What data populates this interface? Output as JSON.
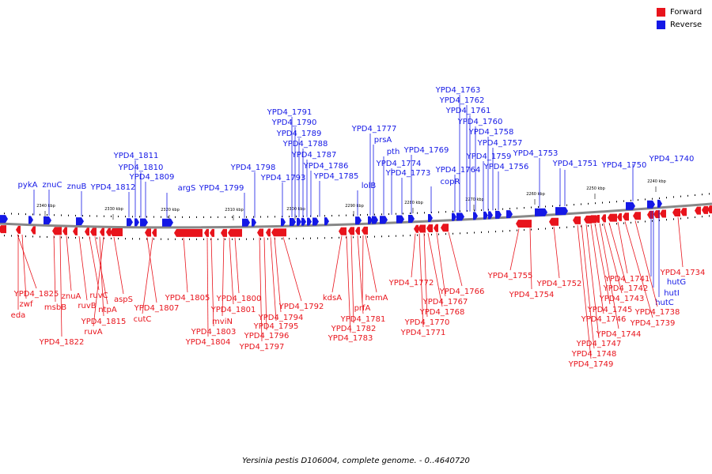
{
  "caption": "Yersinia pestis D106004, complete genome. - 0..4640720",
  "colors": {
    "forward": "#e8141c",
    "reverse": "#1418e6",
    "backbone": "#888888"
  },
  "legend": {
    "forward": "Forward",
    "reverse": "Reverse"
  },
  "scale_labels": [
    "2340 kbp",
    "2330 kbp",
    "2320 kbp",
    "2310 kbp",
    "2300 kbp",
    "2290 kbp",
    "2280 kbp",
    "2270 kbp",
    "2260 kbp",
    "2250 kbp",
    "2240 kbp"
  ],
  "reverse_genes": [
    "pykA",
    "znuC",
    "znuB",
    "YPD4_1812",
    "YPD4_1811",
    "YPD4_1810",
    "YPD4_1809",
    "argS",
    "YPD4_1799",
    "YPD4_1798",
    "YPD4_1793",
    "YPD4_1791",
    "YPD4_1790",
    "YPD4_1789",
    "YPD4_1788",
    "YPD4_1787",
    "YPD4_1786",
    "YPD4_1785",
    "lolB",
    "YPD4_1777",
    "prsA",
    "pth",
    "YPD4_1774",
    "YPD4_1773",
    "YPD4_1769",
    "copR",
    "YPD4_1764",
    "YPD4_1763",
    "YPD4_1762",
    "YPD4_1761",
    "YPD4_1760",
    "YPD4_1759",
    "YPD4_1758",
    "YPD4_1757",
    "YPD4_1756",
    "YPD4_1753",
    "YPD4_1751",
    "YPD4_1750",
    "YPD4_1740",
    "hutG",
    "hutI",
    "hutC"
  ],
  "forward_genes": [
    "YPD4_1825",
    "zwf",
    "eda",
    "msbB",
    "YPD4_1822",
    "znuA",
    "ruvB",
    "ruvC",
    "ntpA",
    "YPD4_1815",
    "ruvA",
    "aspS",
    "YPD4_1807",
    "cutC",
    "YPD4_1805",
    "YPD4_1804",
    "YPD4_1803",
    "mviN",
    "YPD4_1801",
    "YPD4_1800",
    "YPD4_1797",
    "YPD4_1796",
    "YPD4_1795",
    "YPD4_1794",
    "YPD4_1792",
    "kdsA",
    "YPD4_1783",
    "YPD4_1782",
    "YPD4_1781",
    "prfA",
    "hemA",
    "YPD4_1772",
    "YPD4_1771",
    "YPD4_1770",
    "YPD4_1768",
    "YPD4_1767",
    "YPD4_1766",
    "YPD4_1755",
    "YPD4_1754",
    "YPD4_1752",
    "YPD4_1749",
    "YPD4_1748",
    "YPD4_1747",
    "YPD4_1746",
    "YPD4_1745",
    "YPD4_1744",
    "YPD4_1743",
    "YPD4_1742",
    "YPD4_1741",
    "YPD4_1739",
    "YPD4_1738",
    "YPD4_1734"
  ]
}
